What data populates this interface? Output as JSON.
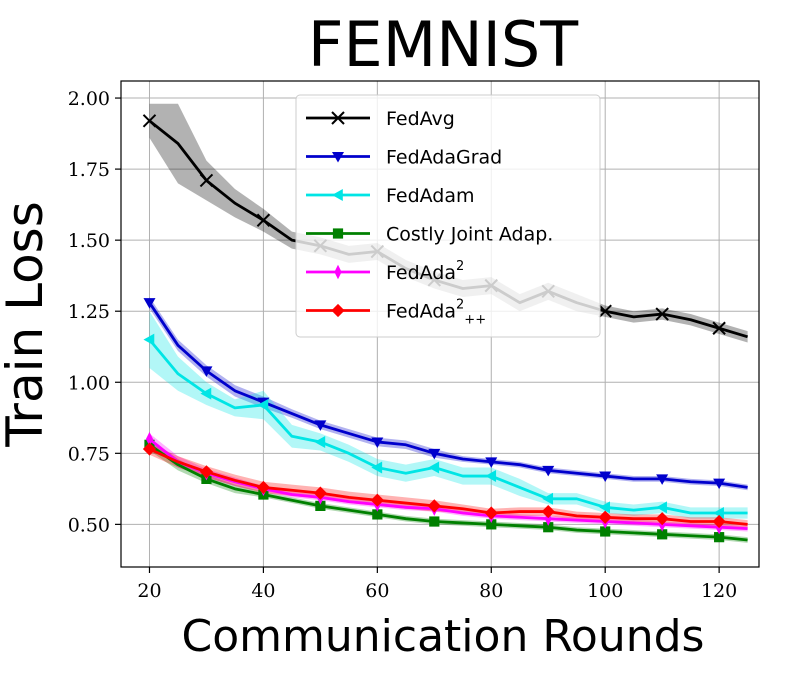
{
  "chart_data": {
    "type": "line",
    "title": "FEMNIST",
    "xlabel": "Communication Rounds",
    "ylabel": "Train Loss",
    "xlim": [
      15,
      127
    ],
    "ylim": [
      0.35,
      2.06
    ],
    "xticks": [
      20,
      40,
      60,
      80,
      100,
      120
    ],
    "xtick_labels": [
      "20",
      "40",
      "60",
      "80",
      "100",
      "120"
    ],
    "yticks": [
      0.5,
      0.75,
      1.0,
      1.25,
      1.5,
      1.75,
      2.0
    ],
    "ytick_labels": [
      "0.50",
      "0.75",
      "1.00",
      "1.25",
      "1.50",
      "1.75",
      "2.00"
    ],
    "grid": true,
    "legend_position": "top-center",
    "x": [
      20,
      25,
      30,
      35,
      40,
      45,
      50,
      55,
      60,
      65,
      70,
      75,
      80,
      85,
      90,
      95,
      100,
      105,
      110,
      115,
      120,
      125
    ],
    "marker_every": 2,
    "series": [
      {
        "name": "FedAvg",
        "label_parts": [
          "FedAvg"
        ],
        "color": "#000000",
        "marker": "x",
        "values": [
          1.92,
          1.84,
          1.71,
          1.63,
          1.57,
          1.5,
          1.48,
          1.45,
          1.46,
          1.4,
          1.36,
          1.33,
          1.34,
          1.28,
          1.32,
          1.28,
          1.25,
          1.23,
          1.24,
          1.22,
          1.19,
          1.16
        ],
        "band": [
          0.06,
          0.14,
          0.07,
          0.05,
          0.04,
          0.03,
          0.03,
          0.03,
          0.03,
          0.03,
          0.03,
          0.03,
          0.03,
          0.03,
          0.03,
          0.03,
          0.02,
          0.02,
          0.02,
          0.02,
          0.02,
          0.02
        ]
      },
      {
        "name": "FedAdaGrad",
        "label_parts": [
          "FedAdaGrad"
        ],
        "color": "#0000cc",
        "marker": "triangle-down",
        "values": [
          1.28,
          1.13,
          1.04,
          0.97,
          0.93,
          0.89,
          0.85,
          0.82,
          0.79,
          0.78,
          0.75,
          0.73,
          0.72,
          0.71,
          0.69,
          0.68,
          0.67,
          0.66,
          0.66,
          0.65,
          0.645,
          0.63
        ],
        "band": [
          0.02,
          0.02,
          0.02,
          0.02,
          0.02,
          0.015,
          0.015,
          0.015,
          0.015,
          0.015,
          0.015,
          0.01,
          0.01,
          0.01,
          0.01,
          0.01,
          0.01,
          0.01,
          0.01,
          0.01,
          0.01,
          0.01
        ]
      },
      {
        "name": "FedAdam",
        "label_parts": [
          "FedAdam"
        ],
        "color": "#00e5e5",
        "marker": "triangle-left",
        "values": [
          1.15,
          1.03,
          0.96,
          0.91,
          0.92,
          0.81,
          0.79,
          0.75,
          0.7,
          0.68,
          0.7,
          0.67,
          0.67,
          0.63,
          0.59,
          0.59,
          0.56,
          0.55,
          0.56,
          0.54,
          0.54,
          0.54
        ],
        "band": [
          0.1,
          0.06,
          0.04,
          0.03,
          0.05,
          0.04,
          0.03,
          0.03,
          0.03,
          0.03,
          0.03,
          0.03,
          0.03,
          0.03,
          0.02,
          0.02,
          0.02,
          0.02,
          0.02,
          0.02,
          0.02,
          0.02
        ]
      },
      {
        "name": "Costly Joint Adap.",
        "label_parts": [
          "Costly Joint Adap."
        ],
        "color": "#008000",
        "marker": "square",
        "values": [
          0.78,
          0.71,
          0.66,
          0.625,
          0.605,
          0.585,
          0.565,
          0.55,
          0.535,
          0.52,
          0.51,
          0.505,
          0.5,
          0.495,
          0.49,
          0.48,
          0.475,
          0.47,
          0.465,
          0.46,
          0.455,
          0.445
        ],
        "band": [
          0.02,
          0.02,
          0.015,
          0.015,
          0.01,
          0.01,
          0.01,
          0.01,
          0.01,
          0.01,
          0.01,
          0.01,
          0.01,
          0.01,
          0.01,
          0.01,
          0.01,
          0.01,
          0.01,
          0.01,
          0.01,
          0.01
        ]
      },
      {
        "name": "FedAda2",
        "label_parts": [
          "FedAda",
          "2",
          ""
        ],
        "color": "#ff00ff",
        "marker": "thin-diamond",
        "values": [
          0.8,
          0.72,
          0.68,
          0.65,
          0.625,
          0.605,
          0.595,
          0.58,
          0.57,
          0.56,
          0.555,
          0.54,
          0.53,
          0.525,
          0.52,
          0.515,
          0.51,
          0.505,
          0.5,
          0.495,
          0.49,
          0.485
        ],
        "band": [
          0.02,
          0.02,
          0.015,
          0.015,
          0.01,
          0.01,
          0.01,
          0.01,
          0.01,
          0.01,
          0.01,
          0.01,
          0.01,
          0.01,
          0.01,
          0.01,
          0.01,
          0.01,
          0.01,
          0.01,
          0.01,
          0.01
        ]
      },
      {
        "name": "FedAda2++",
        "label_parts": [
          "FedAda",
          "2",
          "++"
        ],
        "color": "#ff0000",
        "marker": "diamond",
        "values": [
          0.765,
          0.72,
          0.685,
          0.655,
          0.63,
          0.62,
          0.61,
          0.595,
          0.585,
          0.575,
          0.565,
          0.555,
          0.54,
          0.545,
          0.545,
          0.53,
          0.525,
          0.52,
          0.52,
          0.51,
          0.51,
          0.5
        ],
        "band": [
          0.02,
          0.02,
          0.02,
          0.02,
          0.02,
          0.02,
          0.02,
          0.02,
          0.02,
          0.02,
          0.02,
          0.015,
          0.015,
          0.015,
          0.015,
          0.015,
          0.015,
          0.015,
          0.015,
          0.015,
          0.015,
          0.015
        ]
      }
    ]
  }
}
